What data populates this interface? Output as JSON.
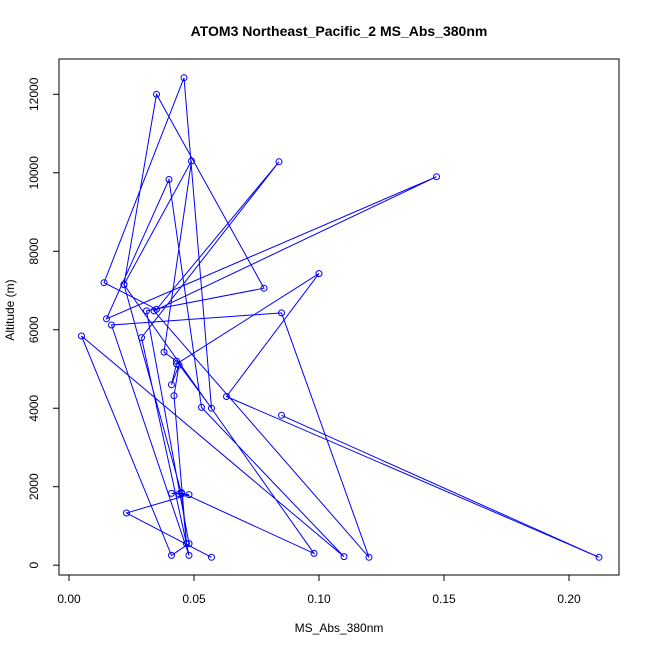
{
  "chart_data": {
    "type": "line",
    "title": "ATOM3 Northeast_Pacific_2 MS_Abs_380nm",
    "xlabel": "MS_Abs_380nm",
    "ylabel": "Altitude (m)",
    "xlim": [
      -0.004,
      0.22
    ],
    "ylim": [
      -250,
      12900
    ],
    "xticks": [
      0.0,
      0.05,
      0.1,
      0.15,
      0.2
    ],
    "xtick_labels": [
      "0.00",
      "0.05",
      "0.10",
      "0.15",
      "0.20"
    ],
    "yticks": [
      0,
      2000,
      4000,
      6000,
      8000,
      10000,
      12000
    ],
    "ytick_labels": [
      "0",
      "2000",
      "4000",
      "6000",
      "8000",
      "10000",
      "12000"
    ],
    "grid": false,
    "legend": "none",
    "series": [
      {
        "color": "#0000ff",
        "marker": "open-circle",
        "x": [
          0.212,
          0.063,
          0.1,
          0.043,
          0.041,
          0.044,
          0.042,
          0.047,
          0.045,
          0.098,
          0.022,
          0.049,
          0.038,
          0.043,
          0.057,
          0.046,
          0.014,
          0.035,
          0.084,
          0.029,
          0.048,
          0.017,
          0.085,
          0.12,
          0.034,
          0.147,
          0.015,
          0.04,
          0.053,
          0.11,
          0.005,
          0.041,
          0.048,
          0.031,
          0.078,
          0.035,
          0.022,
          0.045,
          0.041,
          0.044,
          0.048,
          0.023,
          0.057
        ],
        "y": [
          200,
          4300,
          7430,
          5130,
          4600,
          5100,
          4320,
          550,
          1850,
          300,
          7150,
          10300,
          5430,
          5200,
          4000,
          12420,
          7200,
          6520,
          10280,
          5800,
          250,
          6120,
          6430,
          200,
          6480,
          9900,
          6280,
          9830,
          4020,
          220,
          5840,
          250,
          550,
          6480,
          7060,
          12000,
          7150,
          1830,
          1830,
          1820,
          1800,
          1330,
          200
        ]
      }
    ],
    "annotations": [
      {
        "x1": 0.085,
        "y1": 3820,
        "x2": 0.212,
        "y2": 200
      }
    ]
  }
}
